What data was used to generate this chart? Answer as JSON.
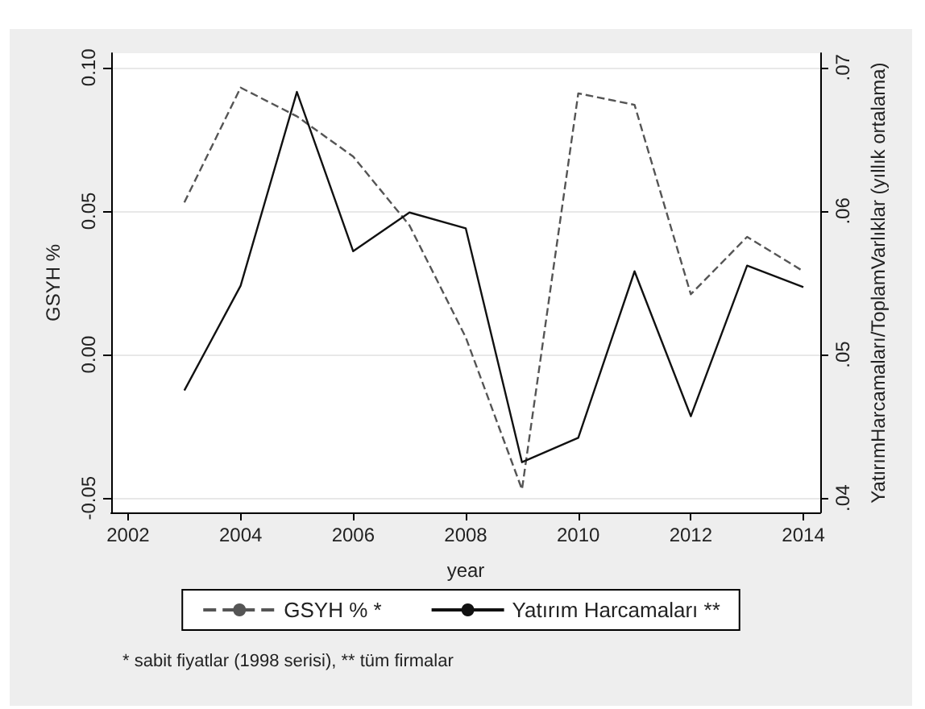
{
  "chart_data": {
    "type": "line",
    "xlabel": "year",
    "ylabel": "GSYH %",
    "y2label": "YatırımHarcamaları/ToplamVarlıklar (yıllık ortalama)",
    "x": [
      2003,
      2004,
      2005,
      2006,
      2007,
      2008,
      2009,
      2010,
      2011,
      2012,
      2013,
      2014
    ],
    "series": [
      {
        "name": "GSYH % *",
        "color": "#555555",
        "line_style": "dashed",
        "values": [
          0.053,
          0.093,
          0.083,
          0.069,
          0.045,
          0.006,
          -0.047,
          0.091,
          0.087,
          0.021,
          0.041,
          0.029
        ]
      },
      {
        "name": "Yatırım Harcamaları **",
        "color": "#111111",
        "line_style": "solid",
        "axis": "y2",
        "values": [
          0.0475,
          0.0548,
          0.0683,
          0.0572,
          0.0599,
          0.0588,
          0.0425,
          0.0442,
          0.0558,
          0.0457,
          0.0562,
          0.0547
        ]
      }
    ],
    "xlim": [
      2001.7,
      2014.3
    ],
    "xticks": [
      2002,
      2004,
      2006,
      2008,
      2010,
      2012,
      2014
    ],
    "ylim": [
      -0.055,
      0.105
    ],
    "yticks": [
      {
        "value": -0.05,
        "label": "-0.05"
      },
      {
        "value": 0,
        "label": "0.00"
      },
      {
        "value": 0.05,
        "label": "0.05"
      },
      {
        "value": 0.1,
        "label": "0.10"
      }
    ],
    "y2lim": [
      0.039,
      0.071
    ],
    "y2ticks": [
      {
        "value": 0.04,
        "label": ".04"
      },
      {
        "value": 0.05,
        "label": ".05"
      },
      {
        "value": 0.06,
        "label": ".06"
      },
      {
        "value": 0.07,
        "label": ".07"
      }
    ],
    "grid": "y",
    "legend": "bottom",
    "marker": "none",
    "annotations": [
      "* sabit fiyatlar (1998 serisi), ** tüm firmalar"
    ]
  }
}
